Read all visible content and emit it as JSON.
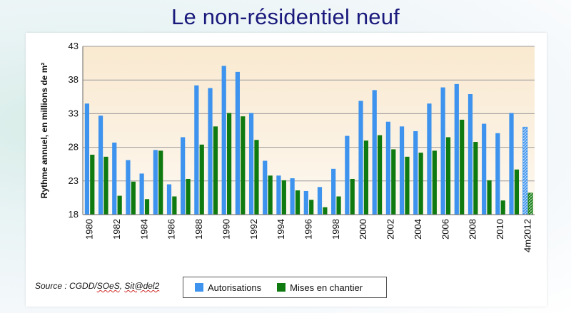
{
  "slide": {
    "title": "Le non-résidentiel neuf",
    "source_prefix": "Source : CGDD/",
    "source_soes": "SOeS",
    "source_mid": ", ",
    "source_sitadel": "Sit@del2"
  },
  "legend": {
    "autorisations": "Autorisations",
    "mises": "Mises en chantier"
  },
  "colors": {
    "autorisations": "#3d93ee",
    "mises": "#0f7a10",
    "plot_bg_top": "#f9e9d0",
    "plot_bg_bottom": "#fdf8f0"
  },
  "chart_data": {
    "type": "bar",
    "ylabel": "Rythme annuel, en millions de m²",
    "ylim": [
      18,
      43
    ],
    "yticks": [
      18,
      23,
      28,
      33,
      38,
      43
    ],
    "categories": [
      "1980",
      "1981",
      "1982",
      "1983",
      "1984",
      "1985",
      "1986",
      "1987",
      "1988",
      "1989",
      "1990",
      "1991",
      "1992",
      "1993",
      "1994",
      "1995",
      "1996",
      "1997",
      "1998",
      "1999",
      "2000",
      "2001",
      "2002",
      "2003",
      "2004",
      "2005",
      "2006",
      "2007",
      "2008",
      "2009",
      "2010",
      "2011",
      "4m2012"
    ],
    "xtick_labels": [
      "1980",
      "",
      "1982",
      "",
      "1984",
      "",
      "1986",
      "",
      "1988",
      "",
      "1990",
      "",
      "1992",
      "",
      "1994",
      "",
      "1996",
      "",
      "1998",
      "",
      "2000",
      "",
      "2002",
      "",
      "2004",
      "",
      "2006",
      "",
      "2008",
      "",
      "2010",
      "",
      "4m2012"
    ],
    "series": [
      {
        "name": "Autorisations",
        "values": [
          34.5,
          32.7,
          28.7,
          26.1,
          24.1,
          27.6,
          22.5,
          29.5,
          37.2,
          36.8,
          40.1,
          39.2,
          33.1,
          26.0,
          23.8,
          23.4,
          21.5,
          22.1,
          24.8,
          29.7,
          34.9,
          36.5,
          31.8,
          31.1,
          30.4,
          34.5,
          36.9,
          37.4,
          35.9,
          31.5,
          30.1,
          33.1,
          31.0
        ]
      },
      {
        "name": "Mises en chantier",
        "values": [
          26.9,
          26.6,
          20.8,
          22.9,
          20.3,
          27.5,
          20.7,
          23.3,
          28.4,
          31.1,
          33.1,
          32.6,
          29.1,
          23.8,
          23.1,
          21.6,
          20.2,
          19.1,
          20.7,
          23.3,
          29.0,
          29.8,
          27.7,
          26.6,
          27.2,
          27.5,
          29.5,
          32.1,
          28.8,
          23.1,
          20.1,
          24.7,
          21.2
        ]
      }
    ],
    "hatched_category": "4m2012"
  }
}
